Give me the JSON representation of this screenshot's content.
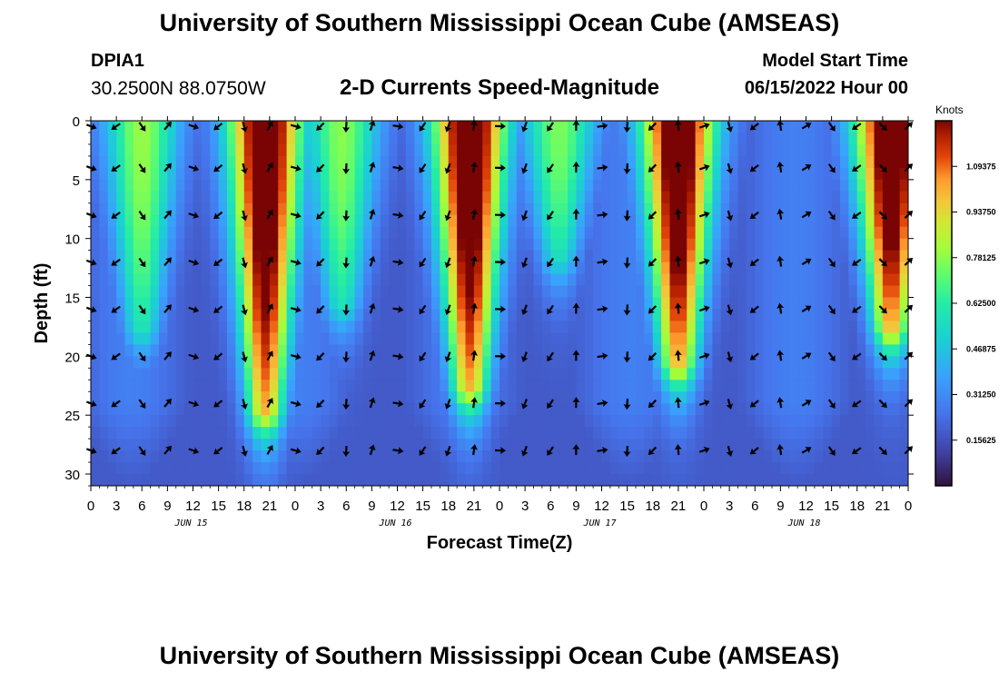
{
  "header": {
    "title": "University of Southern Mississippi Ocean Cube (AMSEAS)",
    "station": "DPIA1",
    "coords": "30.2500N  88.0750W",
    "plot_title": "2-D Currents Speed-Magnitude",
    "model_start_label": "Model Start Time",
    "model_start_value": "06/15/2022 Hour 00"
  },
  "footer": {
    "title": "University of Southern Mississippi Ocean Cube (AMSEAS)"
  },
  "chart_data": {
    "type": "heatmap",
    "title": "2-D Currents Speed-Magnitude",
    "xlabel": "Forecast Time(Z)",
    "ylabel": "Depth (ft)",
    "x_hours": [
      0,
      96
    ],
    "x_tick_labels": [
      "0",
      "3",
      "6",
      "9",
      "12",
      "15",
      "18",
      "21",
      "0",
      "3",
      "6",
      "9",
      "12",
      "15",
      "18",
      "21",
      "0",
      "3",
      "6",
      "9",
      "12",
      "15",
      "18",
      "21",
      "0",
      "3",
      "6",
      "9",
      "12",
      "15",
      "18",
      "21",
      "0"
    ],
    "day_labels": [
      {
        "hour": 12,
        "label": "JUN 15"
      },
      {
        "hour": 36,
        "label": "JUN 16"
      },
      {
        "hour": 60,
        "label": "JUN 17"
      },
      {
        "hour": 84,
        "label": "JUN 18"
      }
    ],
    "ylim": [
      0,
      31
    ],
    "y_ticks": [
      0,
      5,
      10,
      15,
      20,
      25,
      30
    ],
    "colorbar": {
      "unit": "Knots",
      "range": [
        0,
        1.25
      ],
      "ticks": [
        0.15625,
        0.3125,
        0.46875,
        0.625,
        0.78125,
        0.9375,
        1.09375
      ],
      "tick_labels": [
        "0.15625",
        "0.31250",
        "0.46875",
        "0.62500",
        "0.78125",
        "0.93750",
        "1.09375"
      ]
    },
    "peaks": [
      {
        "center_hour": 20.5,
        "amplitude": 1.25,
        "depth_reach_ft": 25
      },
      {
        "center_hour": 44.5,
        "amplitude": 1.25,
        "depth_reach_ft": 23
      },
      {
        "center_hour": 69,
        "amplitude": 1.25,
        "depth_reach_ft": 21
      },
      {
        "center_hour": 94,
        "amplitude": 1.25,
        "depth_reach_ft": 18
      },
      {
        "center_hour": 6,
        "amplitude": 0.62,
        "depth_reach_ft": 18
      },
      {
        "center_hour": 29.5,
        "amplitude": 0.6,
        "depth_reach_ft": 16
      },
      {
        "center_hour": 55,
        "amplitude": 0.58,
        "depth_reach_ft": 12
      }
    ],
    "vector_depths_ft": [
      0,
      4,
      8,
      12,
      16,
      20,
      24,
      28
    ],
    "vector_hours_step": 3
  }
}
